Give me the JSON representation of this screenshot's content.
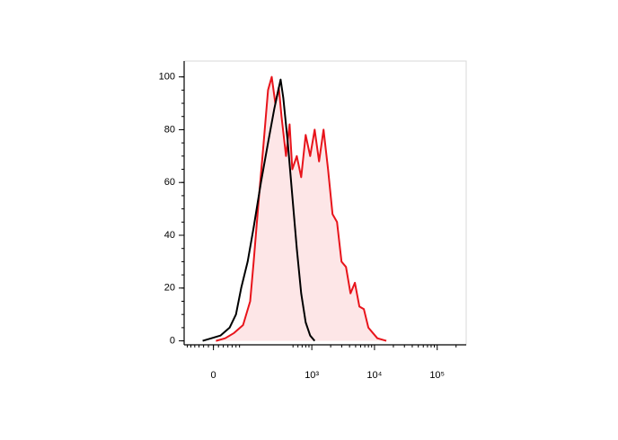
{
  "chart_data": {
    "type": "histogram-overlay",
    "xscale": "biexponential",
    "xlim": [
      -70,
      290000
    ],
    "xticks": [
      0,
      {
        "value": 1000,
        "label": "10³"
      },
      {
        "value": 10000,
        "label": "10⁴"
      },
      {
        "value": 100000,
        "label": "10⁵"
      }
    ],
    "ylim": [
      -1.5,
      106
    ],
    "yticks": [
      0,
      20,
      40,
      60,
      80,
      100
    ],
    "series": [
      {
        "color": "#e8141b",
        "fill": "#fde6e7",
        "x": [
          5,
          24,
          45,
          71,
          97,
          112,
          139,
          166,
          197,
          226,
          259,
          295,
          327,
          386,
          441,
          487,
          574,
          677,
          798,
          941,
          1109,
          1307,
          1540,
          1818,
          2143,
          2527,
          2977,
          3510,
          4136,
          4876,
          5750,
          6777,
          7990,
          9418,
          11100,
          15420
        ],
        "values": [
          0,
          1,
          3,
          6,
          15,
          30,
          55,
          75,
          95,
          100,
          90,
          96,
          85,
          70,
          82,
          65,
          70,
          62,
          78,
          70,
          80,
          68,
          80,
          65,
          48,
          45,
          30,
          28,
          18,
          22,
          13,
          12,
          5,
          3,
          1,
          0
        ]
      },
      {
        "color": "#000000",
        "x": [
          -22,
          -4,
          14,
          34,
          50,
          65,
          87,
          112,
          150,
          197,
          250,
          316,
          349,
          413,
          487,
          574,
          677,
          798,
          941,
          1109
        ],
        "values": [
          0,
          1,
          2,
          5,
          10,
          20,
          30,
          43,
          60,
          75,
          88,
          99,
          92,
          75,
          55,
          35,
          18,
          7,
          2,
          0
        ]
      }
    ]
  }
}
